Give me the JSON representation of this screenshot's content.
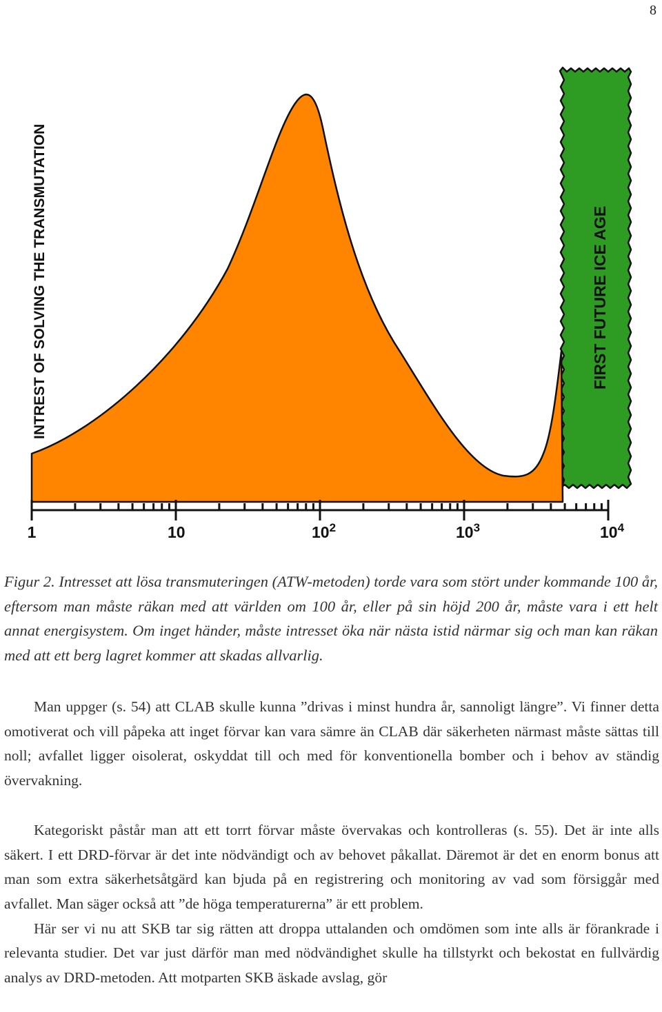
{
  "page_number": "8",
  "figure": {
    "y_axis_label": "INTREST OF SOLVING THE TRANSMUTATION",
    "band_label": "FIRST FUTURE ICE AGE",
    "colors": {
      "curve_fill": "#ff8400",
      "band_fill": "#2e9b22",
      "ink": "#111111"
    }
  },
  "chart_data": {
    "type": "area",
    "x_scale": "log",
    "xlim": [
      1,
      10000
    ],
    "x_tick_labels": [
      {
        "value": 1,
        "base": "1",
        "exp": ""
      },
      {
        "value": 10,
        "base": "10",
        "exp": ""
      },
      {
        "value": 100,
        "base": "10",
        "exp": "2"
      },
      {
        "value": 1000,
        "base": "10",
        "exp": "3"
      },
      {
        "value": 10000,
        "base": "10",
        "exp": "4"
      }
    ],
    "grid": false,
    "legend": "none",
    "title": "",
    "xlabel": "",
    "ylabel": "INTREST OF SOLVING THE TRANSMUTATION",
    "shaded_band": {
      "label": "FIRST FUTURE ICE AGE",
      "x_start": 5800,
      "x_end": 11000
    }
  },
  "caption": "Figur 2. Intresset att lösa transmuteringen (ATW-metoden) torde vara som stört under kommande 100 år, eftersom man måste räkan med att världen om 100 år, eller på sin höjd 200 år, måste vara i ett helt annat energisystem. Om inget händer, måste intresset öka när nästa istid närmar sig och man kan räkan med att ett berg lagret kommer att skadas allvarlig.",
  "paragraphs": [
    "Man uppger (s. 54) att CLAB skulle kunna ”drivas i minst hundra år, sannoligt längre”. Vi finner detta omotiverat och vill påpeka att inget förvar kan vara sämre än CLAB där säkerheten närmast måste sättas till noll; avfallet ligger oisolerat, oskyddat till och med för konventionella bomber och i behov av ständig övervakning.",
    "Kategoriskt påstår man att ett torrt förvar måste övervakas och kontrolleras (s. 55). Det är inte alls säkert. I ett DRD-förvar är det inte nödvändigt och av behovet påkallat. Däremot är det en enorm bonus att man som extra säkerhetsåtgärd kan bjuda på en registrering och monitoring av vad som försiggår med avfallet. Man säger också att ”de höga temperaturerna” är ett problem.",
    "Här ser vi nu att SKB tar sig rätten att droppa uttalanden och omdömen som inte alls är förankrade i relevanta studier. Det var just därför man med nödvändighet skulle ha tillstyrkt och bekostat en fullvärdig analys av DRD-metoden. Att motparten SKB äskade avslag, gör"
  ]
}
